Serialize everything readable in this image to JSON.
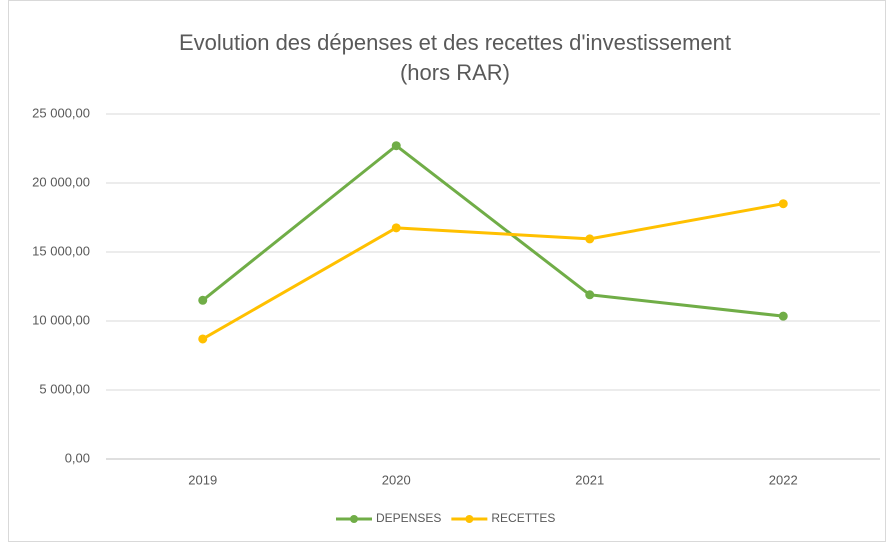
{
  "chart_data": {
    "type": "line",
    "title": [
      "Evolution des dépenses et des recettes d'investissement",
      "(hors RAR)"
    ],
    "categories": [
      "2019",
      "2020",
      "2021",
      "2022"
    ],
    "series": [
      {
        "name": "DEPENSES",
        "color": "#70ad47",
        "values": [
          11500,
          22700,
          11900,
          10350
        ]
      },
      {
        "name": "RECETTES",
        "color": "#ffc000",
        "values": [
          8700,
          16750,
          15950,
          18500
        ]
      }
    ],
    "ylim": [
      0,
      25000
    ],
    "yticks": [
      {
        "value": 0,
        "label": "0,00"
      },
      {
        "value": 5000,
        "label": "5 000,00"
      },
      {
        "value": 10000,
        "label": "10 000,00"
      },
      {
        "value": 15000,
        "label": "15 000,00"
      },
      {
        "value": 20000,
        "label": "20 000,00"
      },
      {
        "value": 25000,
        "label": "25 000,00"
      }
    ],
    "grid": true,
    "legend": "bottom"
  }
}
